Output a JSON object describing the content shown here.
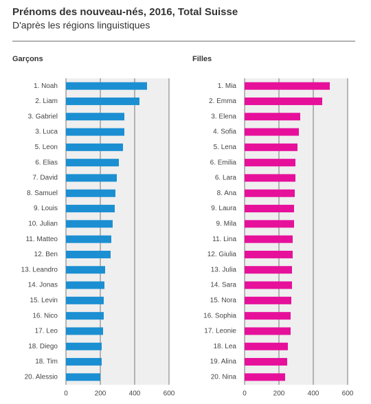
{
  "header": {
    "title": "Prénoms des nouveau-nés, 2016, Total Suisse",
    "subtitle": "D'après les régions linguistiques"
  },
  "chart_data": [
    {
      "type": "bar",
      "title": "Garçons",
      "color": "#1b8fd2",
      "categories": [
        "1. Noah",
        "2. Liam",
        "3. Gabriel",
        "3. Luca",
        "5. Leon",
        "6. Elias",
        "7. David",
        "8. Samuel",
        "9. Louis",
        "10. Julian",
        "11. Matteo",
        "12. Ben",
        "13. Leandro",
        "14. Jonas",
        "15. Levin",
        "16. Nico",
        "17. Leo",
        "18. Diego",
        "18. Tim",
        "20. Alessio"
      ],
      "values": [
        472,
        428,
        340,
        340,
        332,
        308,
        296,
        288,
        284,
        272,
        264,
        260,
        228,
        224,
        220,
        220,
        216,
        208,
        208,
        200
      ],
      "xlim": [
        0,
        600
      ],
      "xticks": [
        0,
        200,
        400,
        600
      ],
      "grid": true
    },
    {
      "type": "bar",
      "title": "Filles",
      "color": "#e6109b",
      "categories": [
        "1. Mia",
        "2. Emma",
        "3. Elena",
        "4. Sofia",
        "5. Lena",
        "6. Emilia",
        "6. Lara",
        "8. Ana",
        "9. Laura",
        "9. Mila",
        "11. Lina",
        "12. Giulia",
        "13. Julia",
        "14. Sara",
        "15. Nora",
        "16. Sophia",
        "17. Leonie",
        "18. Lea",
        "19. Alina",
        "20. Nina"
      ],
      "values": [
        496,
        452,
        324,
        316,
        308,
        296,
        296,
        292,
        288,
        288,
        280,
        280,
        276,
        276,
        272,
        268,
        268,
        252,
        248,
        236
      ],
      "xlim": [
        0,
        600
      ],
      "xticks": [
        0,
        200,
        400,
        600
      ],
      "grid": true
    }
  ]
}
